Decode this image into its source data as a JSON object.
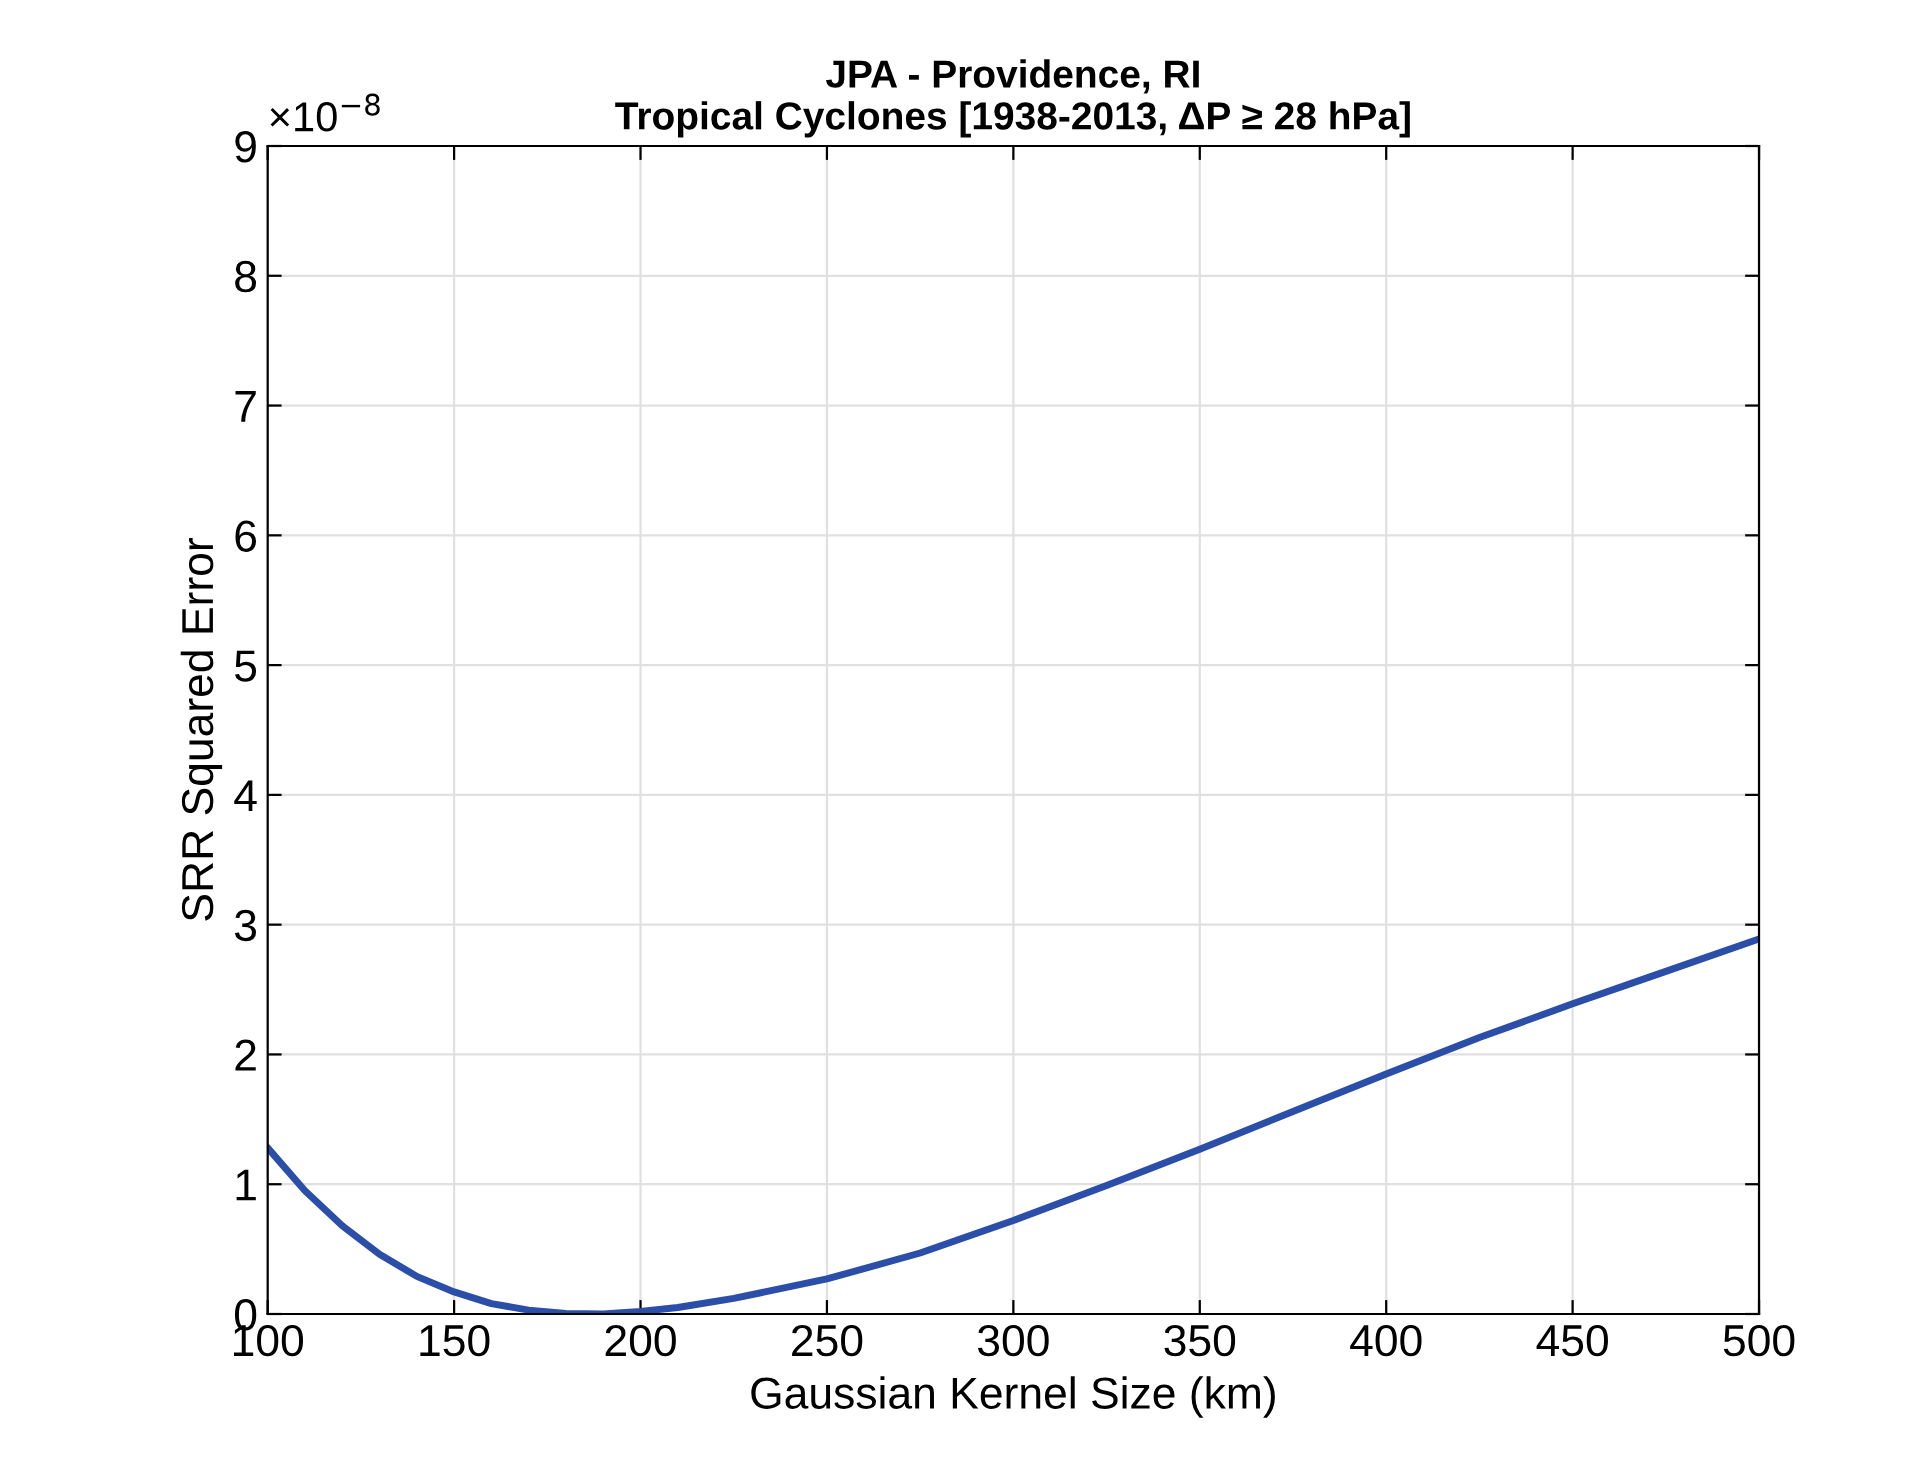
{
  "chart_data": {
    "type": "line",
    "title": "JPA - Providence, RI\nTropical Cyclones [1938-2013, ΔP ≥ 28 hPa]",
    "xlabel": "Gaussian Kernel Size (km)",
    "ylabel": "SRR Squared Error",
    "annotations": [
      "×10$^{−8}$"
    ],
    "x": [
      100,
      110,
      120,
      130,
      140,
      150,
      160,
      170,
      180,
      190,
      200,
      210,
      225,
      250,
      275,
      300,
      325,
      350,
      375,
      400,
      425,
      450,
      475,
      500
    ],
    "series": [
      {
        "color": "#2b4ea8",
        "values": [
          1.28,
          0.95,
          0.68,
          0.46,
          0.29,
          0.17,
          0.08,
          0.03,
          0.005,
          0.0,
          0.02,
          0.05,
          0.12,
          0.27,
          0.47,
          0.72,
          0.99,
          1.27,
          1.56,
          1.85,
          2.13,
          2.39,
          2.64,
          2.89
        ]
      }
    ],
    "xlim": [
      100,
      500
    ],
    "xticks": [
      100,
      150,
      200,
      250,
      300,
      350,
      400,
      450,
      500
    ],
    "ylim": [
      0,
      9
    ],
    "yticks": [
      0,
      1,
      2,
      3,
      4,
      5,
      6,
      7,
      8,
      9
    ],
    "grid": true,
    "marker": "none",
    "line_style": "solid"
  }
}
